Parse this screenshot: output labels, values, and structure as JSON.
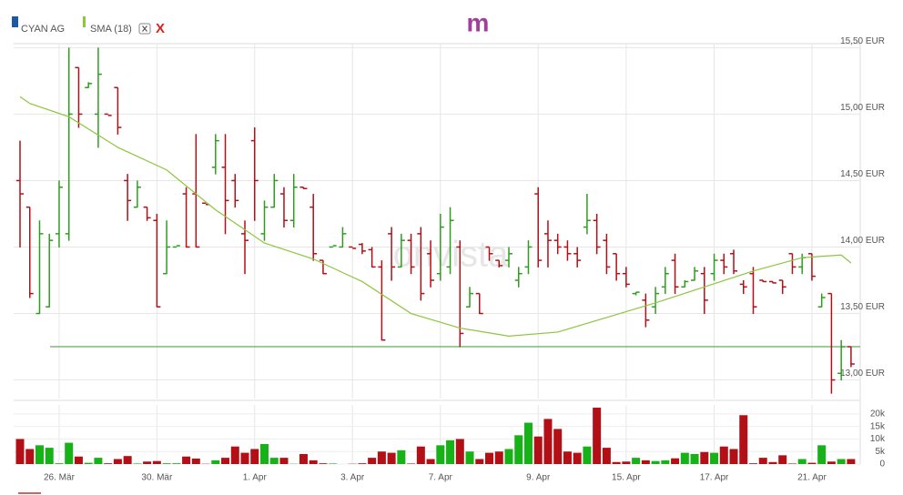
{
  "chart_data": {
    "type": "ohlc",
    "logo": "m",
    "watermark": "onvista",
    "remove_label": "X",
    "up_color": "#2e9d1e",
    "down_color": "#b30f16",
    "categories": [
      null,
      null,
      null,
      null,
      "26. Mär",
      null,
      null,
      null,
      null,
      null,
      null,
      null,
      null,
      null,
      "30. Mär",
      null,
      null,
      null,
      null,
      null,
      null,
      null,
      null,
      null,
      "1. Apr",
      null,
      null,
      null,
      null,
      null,
      null,
      null,
      null,
      null,
      "3. Apr",
      null,
      null,
      null,
      null,
      null,
      null,
      null,
      null,
      "7. Apr",
      null,
      null,
      null,
      null,
      null,
      null,
      null,
      null,
      null,
      "9. Apr",
      null,
      null,
      null,
      null,
      null,
      null,
      null,
      null,
      "15. Apr",
      null,
      null,
      null,
      null,
      null,
      null,
      null,
      null,
      "17. Apr",
      null,
      null,
      null,
      null,
      null,
      null,
      null,
      null,
      null,
      "21. Apr",
      null,
      null,
      null,
      null
    ],
    "series": [
      {
        "name": "CYAN AG",
        "color": "#1e5aa0",
        "ohlc": [
          [
            14.5,
            14.8,
            14.0,
            14.4
          ],
          [
            14.3,
            14.3,
            13.62,
            13.65
          ],
          [
            13.5,
            14.2,
            13.5,
            14.1
          ],
          [
            13.55,
            14.1,
            13.55,
            14.05
          ],
          [
            14.1,
            14.5,
            14.0,
            14.45
          ],
          [
            14.1,
            15.5,
            14.05,
            15.0
          ],
          [
            15.35,
            15.35,
            14.9,
            15.0
          ],
          [
            15.2,
            15.24,
            15.2,
            15.23
          ],
          [
            15.0,
            15.5,
            14.75,
            15.3
          ],
          [
            15.0,
            15.0,
            15.0,
            14.99
          ],
          [
            15.2,
            15.2,
            14.85,
            14.9
          ],
          [
            14.5,
            14.55,
            14.2,
            14.35
          ],
          [
            14.3,
            14.5,
            14.3,
            14.45
          ],
          [
            14.3,
            14.3,
            14.2,
            14.22
          ],
          [
            14.2,
            14.25,
            13.55,
            13.55
          ],
          [
            13.8,
            14.2,
            13.8,
            14.0
          ],
          [
            14.0,
            14.0,
            14.0,
            14.01
          ],
          [
            14.4,
            14.45,
            14.0,
            14.0
          ],
          [
            14.4,
            14.85,
            14.0,
            14.0
          ],
          [
            14.33,
            14.33,
            14.33,
            14.32
          ],
          [
            14.6,
            14.85,
            14.55,
            14.8
          ],
          [
            14.6,
            14.85,
            14.1,
            14.35
          ],
          [
            14.5,
            14.55,
            14.3,
            14.35
          ],
          [
            14.1,
            14.2,
            13.8,
            14.05
          ],
          [
            14.8,
            14.9,
            14.2,
            14.5
          ],
          [
            14.1,
            14.35,
            14.05,
            14.3
          ],
          [
            14.3,
            14.55,
            14.3,
            14.5
          ],
          [
            14.4,
            14.45,
            14.15,
            14.2
          ],
          [
            14.2,
            14.55,
            14.15,
            14.45
          ],
          [
            14.45,
            14.45,
            14.44,
            14.44
          ],
          [
            14.3,
            14.4,
            13.9,
            13.95
          ],
          [
            13.9,
            13.9,
            13.8,
            13.8
          ],
          [
            14.0,
            14.0,
            14.0,
            14.01
          ],
          [
            14.0,
            14.15,
            14.0,
            14.1
          ],
          [
            14.0,
            14.0,
            14.0,
            13.99
          ],
          [
            14.02,
            14.03,
            13.95,
            13.97
          ],
          [
            13.98,
            14.0,
            13.85,
            13.85
          ],
          [
            13.85,
            13.9,
            13.3,
            13.3
          ],
          [
            14.1,
            14.15,
            13.75,
            13.85
          ],
          [
            13.85,
            14.1,
            13.85,
            14.05
          ],
          [
            14.05,
            14.1,
            13.8,
            13.85
          ],
          [
            14.1,
            14.15,
            13.6,
            13.65
          ],
          [
            13.95,
            14.05,
            13.7,
            13.75
          ],
          [
            13.8,
            14.25,
            13.75,
            14.15
          ],
          [
            13.85,
            14.3,
            13.8,
            14.2
          ],
          [
            14.0,
            14.05,
            13.25,
            13.35
          ],
          [
            13.55,
            13.7,
            13.55,
            13.65
          ],
          [
            13.65,
            13.65,
            13.5,
            13.5
          ],
          [
            14.0,
            14.0,
            13.9,
            13.95
          ],
          [
            13.9,
            13.9,
            13.85,
            13.86
          ],
          [
            13.9,
            14.0,
            13.85,
            13.95
          ],
          [
            13.75,
            13.85,
            13.7,
            13.8
          ],
          [
            13.85,
            14.05,
            13.8,
            14.0
          ],
          [
            14.4,
            14.45,
            13.85,
            13.9
          ],
          [
            14.1,
            14.2,
            13.85,
            14.05
          ],
          [
            14.05,
            14.1,
            13.95,
            14.0
          ],
          [
            14.0,
            14.05,
            13.9,
            13.95
          ],
          [
            13.95,
            14.0,
            13.85,
            13.9
          ],
          [
            14.15,
            14.4,
            14.1,
            14.2
          ],
          [
            14.2,
            14.25,
            13.95,
            14.0
          ],
          [
            14.05,
            14.1,
            13.8,
            13.85
          ],
          [
            13.95,
            13.95,
            13.75,
            13.8
          ],
          [
            13.8,
            13.85,
            13.7,
            13.72
          ],
          [
            13.65,
            13.66,
            13.64,
            13.66
          ],
          [
            13.6,
            13.65,
            13.4,
            13.45
          ],
          [
            13.55,
            13.7,
            13.5,
            13.65
          ],
          [
            13.7,
            13.85,
            13.65,
            13.8
          ],
          [
            13.9,
            13.95,
            13.65,
            13.7
          ],
          [
            13.7,
            13.75,
            13.7,
            13.74
          ],
          [
            13.75,
            13.85,
            13.75,
            13.82
          ],
          [
            13.8,
            13.85,
            13.5,
            13.6
          ],
          [
            13.8,
            13.95,
            13.75,
            13.9
          ],
          [
            13.9,
            13.95,
            13.8,
            13.85
          ],
          [
            13.95,
            13.98,
            13.8,
            13.82
          ],
          [
            13.72,
            13.75,
            13.65,
            13.7
          ],
          [
            13.8,
            13.85,
            13.5,
            13.55
          ],
          [
            13.75,
            13.75,
            13.74,
            13.74
          ],
          [
            13.74,
            13.74,
            13.73,
            13.73
          ],
          [
            13.75,
            13.75,
            13.65,
            13.7
          ],
          [
            13.95,
            13.95,
            13.8,
            13.85
          ],
          [
            13.85,
            13.95,
            13.8,
            13.92
          ],
          [
            13.95,
            13.95,
            13.75,
            13.78
          ],
          [
            13.55,
            13.65,
            13.55,
            13.62
          ],
          [
            13.65,
            13.65,
            12.9,
            13.0
          ],
          [
            13.05,
            13.3,
            13.0,
            13.25
          ],
          [
            13.25,
            13.25,
            13.1,
            13.12
          ]
        ]
      },
      {
        "name": "SMA (18)",
        "color": "#8cc63f",
        "x": [
          0,
          1,
          5,
          10,
          15,
          20,
          25,
          30,
          35,
          40,
          45,
          50,
          55,
          60,
          65,
          70,
          75,
          80,
          84,
          85
        ],
        "values": [
          15.13,
          15.08,
          14.98,
          14.75,
          14.58,
          14.28,
          14.03,
          13.91,
          13.74,
          13.5,
          13.39,
          13.33,
          13.36,
          13.47,
          13.58,
          13.7,
          13.82,
          13.92,
          13.94,
          13.88
        ]
      }
    ],
    "reference_line": 13.25,
    "reference_color": "#3a9a3a",
    "ylim": [
      12.86,
      15.53
    ],
    "yticks": [
      {
        "value": 13,
        "label": "13,00 EUR"
      },
      {
        "value": 13.5,
        "label": "13,50 EUR"
      },
      {
        "value": 14,
        "label": "14,00 EUR"
      },
      {
        "value": 14.5,
        "label": "14,50 EUR"
      },
      {
        "value": 15,
        "label": "15,00 EUR"
      },
      {
        "value": 15.5,
        "label": "15,50 EUR"
      }
    ],
    "grid": true,
    "volume": {
      "up_color": "#17b217",
      "down_color": "#b30f16",
      "values": [
        10000,
        6000,
        7500,
        6500,
        300,
        8500,
        3000,
        500,
        2500,
        300,
        2000,
        3200,
        200,
        1000,
        1200,
        300,
        300,
        3000,
        2200,
        100,
        1500,
        2500,
        7000,
        4500,
        6000,
        8000,
        2500,
        2500,
        100,
        4000,
        1500,
        300,
        200,
        0,
        100,
        300,
        2500,
        5000,
        4500,
        5500,
        200,
        7000,
        2000,
        7500,
        9500,
        10000,
        5000,
        2000,
        4500,
        5000,
        6000,
        11500,
        16500,
        11000,
        18000,
        14000,
        5000,
        4500,
        7000,
        22500,
        6500,
        800,
        1000,
        2500,
        1500,
        1200,
        1500,
        2300,
        4500,
        4000,
        4800,
        4500,
        7000,
        6000,
        19500,
        300,
        2500,
        800,
        3500,
        200,
        2000,
        500,
        7500,
        1000,
        2000,
        2000
      ],
      "ylim": [
        0,
        23600
      ],
      "yticks": [
        0,
        {
          "value": 5000,
          "label": "5k"
        },
        {
          "value": 10000,
          "label": "10k"
        },
        {
          "value": 15000,
          "label": "15k"
        },
        {
          "value": 20000,
          "label": "20k"
        }
      ]
    }
  }
}
